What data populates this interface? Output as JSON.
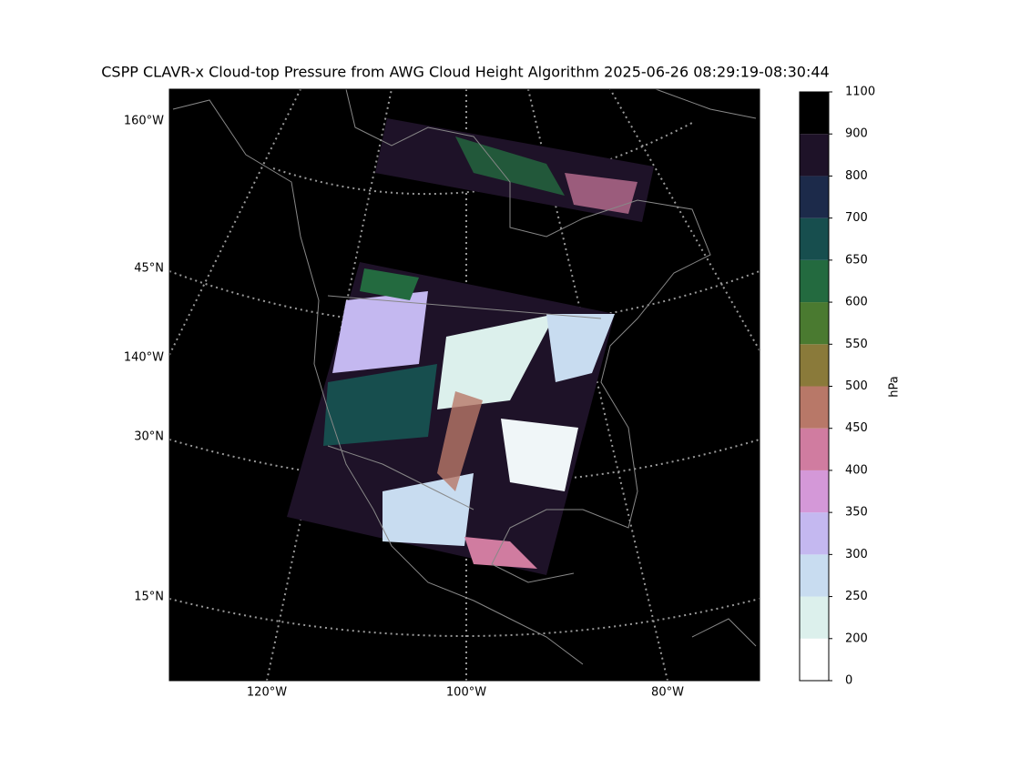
{
  "title": "CSPP CLAVR-x Cloud-top Pressure from AWG Cloud Height Algorithm 2025-06-26 08:29:19-08:30:44",
  "left_labels": [
    "160°W",
    "45°N",
    "140°W",
    "30°N",
    "15°N"
  ],
  "bottom_labels": [
    "120°W",
    "100°W",
    "80°W"
  ],
  "colorbar": {
    "label": "hPa",
    "ticks": [
      0,
      200,
      250,
      300,
      350,
      400,
      450,
      500,
      550,
      600,
      650,
      700,
      800,
      900,
      1100
    ],
    "colors": [
      "#ffffff",
      "#dcf0ec",
      "#c8dcf0",
      "#c4b8f0",
      "#d498d8",
      "#d07ca0",
      "#b87868",
      "#8a7a3a",
      "#4a7a30",
      "#236a3f",
      "#174e4e",
      "#1c2a4a",
      "#1e1228",
      "#000000"
    ]
  }
}
